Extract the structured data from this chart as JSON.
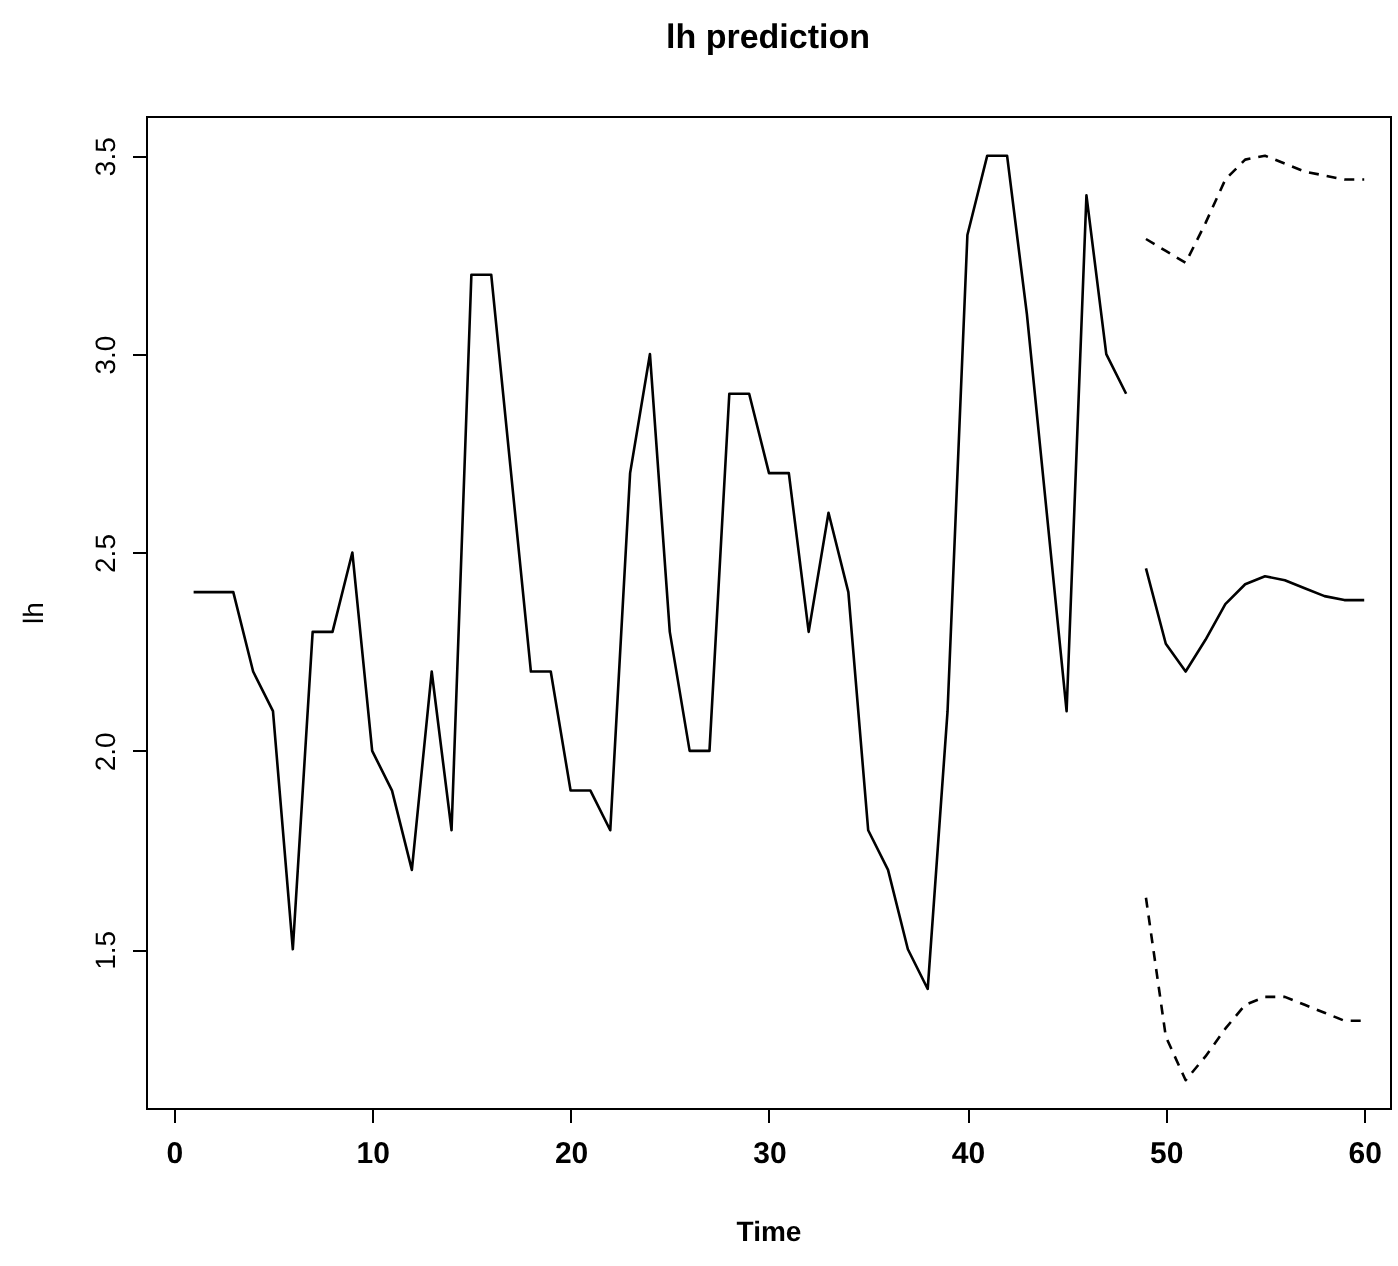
{
  "chart_data": {
    "type": "line",
    "title": "lh prediction",
    "xlabel": "Time",
    "ylabel": "lh",
    "xlim": [
      -1.4,
      61.3
    ],
    "xticks": [
      0,
      10,
      20,
      30,
      40,
      50,
      60
    ],
    "ylim": [
      1.1,
      3.6
    ],
    "yticks": [
      1.5,
      {
        "value": 2,
        "label": "2.0"
      },
      2.5,
      {
        "value": 3,
        "label": "3.0"
      },
      3.5
    ],
    "grid": false,
    "legend": false,
    "marker": "none",
    "series": [
      {
        "color": "#000000",
        "line_style": "solid",
        "x": [
          1,
          2,
          3,
          4,
          5,
          6,
          7,
          8,
          9,
          10,
          11,
          12,
          13,
          14,
          15,
          16,
          17,
          18,
          19,
          20,
          21,
          22,
          23,
          24,
          25,
          26,
          27,
          28,
          29,
          30,
          31,
          32,
          33,
          34,
          35,
          36,
          37,
          38,
          39,
          40,
          41,
          42,
          43,
          44,
          45,
          46,
          47,
          48
        ],
        "values": [
          2.4,
          2.4,
          2.4,
          2.2,
          2.1,
          1.5,
          2.3,
          2.3,
          2.5,
          2.0,
          1.9,
          1.7,
          2.2,
          1.8,
          3.2,
          3.2,
          2.7,
          2.2,
          2.2,
          1.9,
          1.9,
          1.8,
          2.7,
          3.0,
          2.3,
          2.0,
          2.0,
          2.9,
          2.9,
          2.7,
          2.7,
          2.3,
          2.6,
          2.4,
          1.8,
          1.7,
          1.5,
          1.4,
          2.1,
          3.3,
          3.5,
          3.5,
          3.1,
          2.6,
          2.1,
          3.4,
          3.0,
          2.9
        ]
      },
      {
        "color": "#000000",
        "line_style": "solid",
        "x": [
          49,
          50,
          51,
          52,
          53,
          54,
          55,
          56,
          57,
          58,
          59,
          60
        ],
        "values": [
          2.46,
          2.27,
          2.2,
          2.28,
          2.37,
          2.42,
          2.44,
          2.43,
          2.41,
          2.39,
          2.38,
          2.38
        ]
      },
      {
        "color": "#000000",
        "line_style": "dashed",
        "x": [
          49,
          50,
          51,
          52,
          53,
          54,
          55,
          56,
          57,
          58,
          59,
          60
        ],
        "values": [
          3.29,
          3.26,
          3.23,
          3.33,
          3.44,
          3.49,
          3.5,
          3.48,
          3.46,
          3.45,
          3.44,
          3.44
        ]
      },
      {
        "color": "#000000",
        "line_style": "dashed",
        "x": [
          49,
          50,
          51,
          52,
          53,
          54,
          55,
          56,
          57,
          58,
          59,
          60
        ],
        "values": [
          1.63,
          1.28,
          1.17,
          1.23,
          1.3,
          1.36,
          1.38,
          1.38,
          1.36,
          1.34,
          1.32,
          1.32
        ]
      }
    ]
  }
}
